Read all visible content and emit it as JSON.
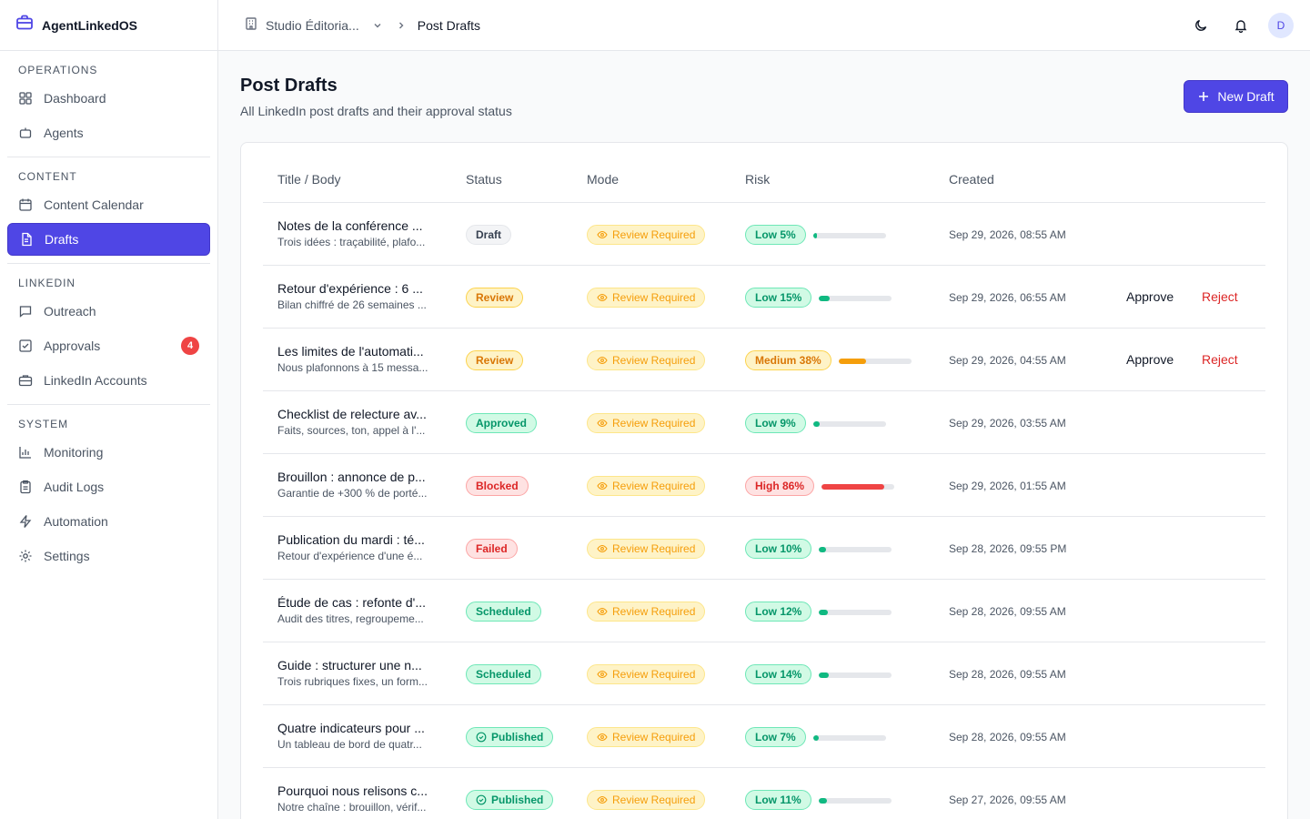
{
  "app": {
    "name": "AgentLinkedOS"
  },
  "sidebar": {
    "sections": [
      {
        "heading": "OPERATIONS",
        "items": [
          {
            "label": "Dashboard",
            "icon": "grid-icon"
          },
          {
            "label": "Agents",
            "icon": "bot-icon"
          }
        ]
      },
      {
        "heading": "CONTENT",
        "items": [
          {
            "label": "Content Calendar",
            "icon": "calendar-icon"
          },
          {
            "label": "Drafts",
            "icon": "document-icon",
            "active": true
          }
        ]
      },
      {
        "heading": "LINKEDIN",
        "items": [
          {
            "label": "Outreach",
            "icon": "message-icon"
          },
          {
            "label": "Approvals",
            "icon": "check-square-icon",
            "badge": "4"
          },
          {
            "label": "LinkedIn Accounts",
            "icon": "briefcase-icon"
          }
        ]
      },
      {
        "heading": "SYSTEM",
        "items": [
          {
            "label": "Monitoring",
            "icon": "bar-chart-icon"
          },
          {
            "label": "Audit Logs",
            "icon": "clipboard-icon"
          },
          {
            "label": "Automation",
            "icon": "bolt-icon"
          },
          {
            "label": "Settings",
            "icon": "gear-icon"
          }
        ]
      }
    ]
  },
  "topbar": {
    "workspace": "Studio Éditoria...",
    "current": "Post Drafts",
    "avatar_initial": "D"
  },
  "page": {
    "title": "Post Drafts",
    "subtitle": "All LinkedIn post drafts and their approval status",
    "new_button": "New Draft"
  },
  "table": {
    "headers": [
      "Title / Body",
      "Status",
      "Mode",
      "Risk",
      "Created"
    ],
    "approve_label": "Approve",
    "reject_label": "Reject",
    "rows": [
      {
        "title": "Notes de la conférence ...",
        "body": "Trois idées : traçabilité, plafo...",
        "status": "Draft",
        "status_class": "draft",
        "mode": "Review Required",
        "risk_label": "Low 5%",
        "risk_level": "low",
        "risk_pct": 5,
        "created": "Sep 29, 2026, 08:55 AM",
        "actions": false
      },
      {
        "title": "Retour d'expérience : 6 ...",
        "body": "Bilan chiffré de 26 semaines ...",
        "status": "Review",
        "status_class": "review",
        "mode": "Review Required",
        "risk_label": "Low 15%",
        "risk_level": "low",
        "risk_pct": 15,
        "created": "Sep 29, 2026, 06:55 AM",
        "actions": true
      },
      {
        "title": "Les limites de l'automati...",
        "body": "Nous plafonnons à 15 messa...",
        "status": "Review",
        "status_class": "review",
        "mode": "Review Required",
        "risk_label": "Medium 38%",
        "risk_level": "medium",
        "risk_pct": 38,
        "created": "Sep 29, 2026, 04:55 AM",
        "actions": true
      },
      {
        "title": "Checklist de relecture av...",
        "body": "Faits, sources, ton, appel à l'...",
        "status": "Approved",
        "status_class": "approved",
        "mode": "Review Required",
        "risk_label": "Low 9%",
        "risk_level": "low",
        "risk_pct": 9,
        "created": "Sep 29, 2026, 03:55 AM",
        "actions": false
      },
      {
        "title": "Brouillon : annonce de p...",
        "body": "Garantie de +300 % de porté...",
        "status": "Blocked",
        "status_class": "blocked",
        "mode": "Review Required",
        "risk_label": "High 86%",
        "risk_level": "high",
        "risk_pct": 86,
        "created": "Sep 29, 2026, 01:55 AM",
        "actions": false
      },
      {
        "title": "Publication du mardi : té...",
        "body": "Retour d'expérience d'une é...",
        "status": "Failed",
        "status_class": "failed",
        "mode": "Review Required",
        "risk_label": "Low 10%",
        "risk_level": "low",
        "risk_pct": 10,
        "created": "Sep 28, 2026, 09:55 PM",
        "actions": false
      },
      {
        "title": "Étude de cas : refonte d'...",
        "body": "Audit des titres, regroupeme...",
        "status": "Scheduled",
        "status_class": "scheduled",
        "mode": "Review Required",
        "risk_label": "Low 12%",
        "risk_level": "low",
        "risk_pct": 12,
        "created": "Sep 28, 2026, 09:55 AM",
        "actions": false
      },
      {
        "title": "Guide : structurer une n...",
        "body": "Trois rubriques fixes, un form...",
        "status": "Scheduled",
        "status_class": "scheduled",
        "mode": "Review Required",
        "risk_label": "Low 14%",
        "risk_level": "low",
        "risk_pct": 14,
        "created": "Sep 28, 2026, 09:55 AM",
        "actions": false
      },
      {
        "title": "Quatre indicateurs pour ...",
        "body": "Un tableau de bord de quatr...",
        "status": "Published",
        "status_class": "published",
        "mode": "Review Required",
        "risk_label": "Low 7%",
        "risk_level": "low",
        "risk_pct": 7,
        "created": "Sep 28, 2026, 09:55 AM",
        "actions": false
      },
      {
        "title": "Pourquoi nous relisons c...",
        "body": "Notre chaîne : brouillon, vérif...",
        "status": "Published",
        "status_class": "published",
        "mode": "Review Required",
        "risk_label": "Low 11%",
        "risk_level": "low",
        "risk_pct": 11,
        "created": "Sep 27, 2026, 09:55 AM",
        "actions": false
      }
    ]
  }
}
